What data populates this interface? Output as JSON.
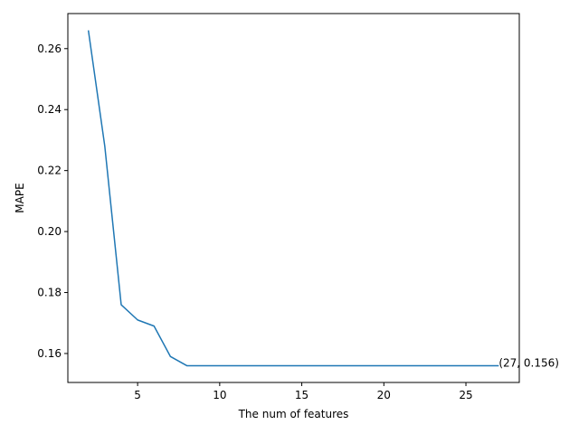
{
  "chart_data": {
    "type": "line",
    "title": "",
    "xlabel": "The num of features",
    "ylabel": "MAPE",
    "xlim": [
      0.75,
      28.25
    ],
    "ylim": [
      0.1505,
      0.2715
    ],
    "xticks": [
      5,
      10,
      15,
      20,
      25
    ],
    "yticks": [
      0.16,
      0.18,
      0.2,
      0.22,
      0.24,
      0.26
    ],
    "ytick_labels": [
      "0.16",
      "0.18",
      "0.20",
      "0.22",
      "0.24",
      "0.26"
    ],
    "grid": false,
    "legend": "none",
    "line_color": "#1f77b4",
    "series": [
      {
        "x": [
          2,
          3,
          4,
          5,
          6,
          7,
          8,
          9,
          10,
          11,
          12,
          13,
          14,
          15,
          16,
          17,
          18,
          19,
          20,
          21,
          22,
          23,
          24,
          25,
          26,
          27
        ],
        "values": [
          0.266,
          0.228,
          0.176,
          0.171,
          0.169,
          0.159,
          0.156,
          0.156,
          0.156,
          0.156,
          0.156,
          0.156,
          0.156,
          0.156,
          0.156,
          0.156,
          0.156,
          0.156,
          0.156,
          0.156,
          0.156,
          0.156,
          0.156,
          0.156,
          0.156,
          0.156
        ]
      }
    ],
    "annotation": {
      "text": "(27, 0.156)",
      "x": 27,
      "y": 0.156
    }
  }
}
